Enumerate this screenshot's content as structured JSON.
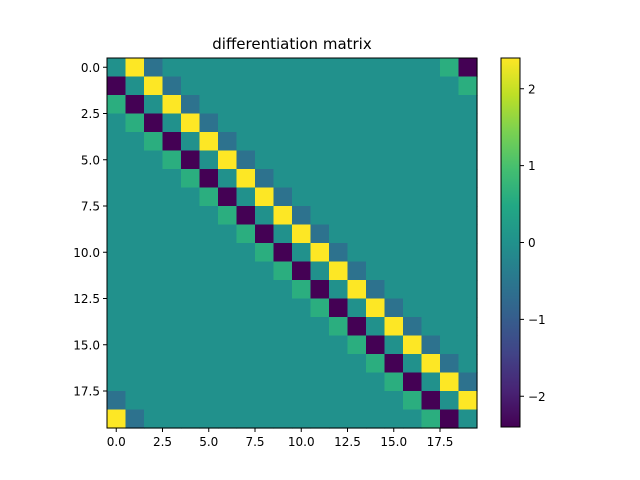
{
  "chart_data": {
    "type": "heatmap",
    "title": "differentiation matrix",
    "n": 20,
    "stencil": {
      "offsets": [
        -2,
        -1,
        1,
        2
      ],
      "weights": [
        0.6,
        -2.4,
        2.4,
        -0.6
      ],
      "periodic": true
    },
    "xticks": [
      0.0,
      2.5,
      5.0,
      7.5,
      10.0,
      12.5,
      15.0,
      17.5
    ],
    "xtick_labels": [
      "0.0",
      "2.5",
      "5.0",
      "7.5",
      "10.0",
      "12.5",
      "15.0",
      "17.5"
    ],
    "yticks": [
      0.0,
      2.5,
      5.0,
      7.5,
      10.0,
      12.5,
      15.0,
      17.5
    ],
    "ytick_labels": [
      "0.0",
      "2.5",
      "5.0",
      "7.5",
      "10.0",
      "12.5",
      "15.0",
      "17.5"
    ],
    "colorbar": {
      "vmin": -2.4,
      "vmax": 2.4,
      "ticks": [
        -2,
        -1,
        0,
        1,
        2
      ],
      "tick_labels": [
        "−2",
        "−1",
        "0",
        "1",
        "2"
      ]
    },
    "colormap": "viridis"
  }
}
